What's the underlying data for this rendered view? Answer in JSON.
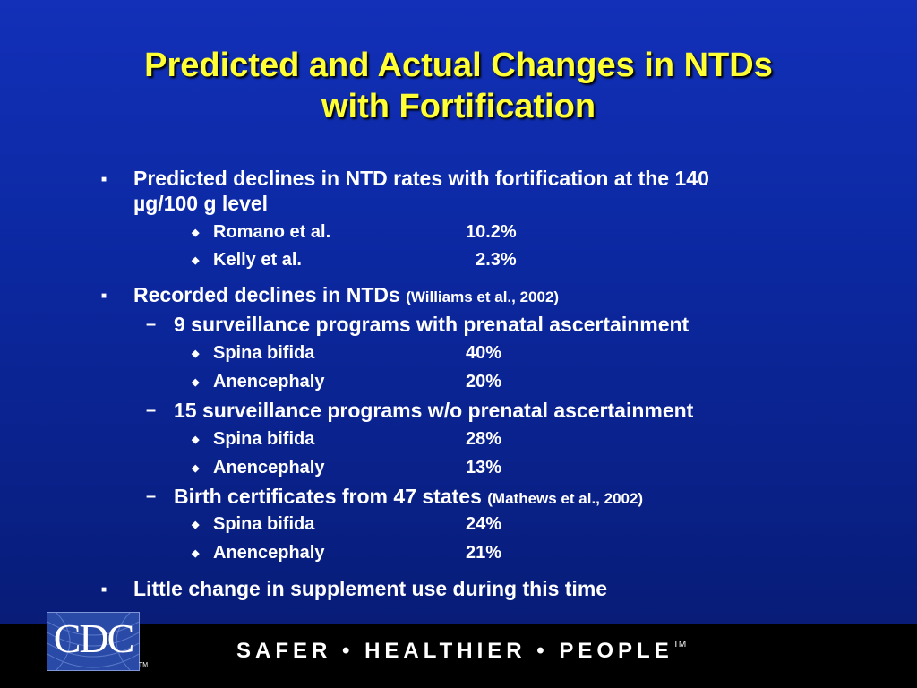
{
  "title": {
    "line1": "Predicted and Actual Changes in NTDs",
    "line2": "with Fortification"
  },
  "predicted": {
    "text_line1": "Predicted declines in NTD rates with fortification at the 140",
    "text_line2": "µg/100 g level",
    "items": [
      {
        "name": "Romano et al.",
        "value": "10.2%"
      },
      {
        "name": "Kelly et al.",
        "value": "2.3%"
      }
    ]
  },
  "recorded": {
    "text": "Recorded declines in NTDs",
    "citation": "(Williams et al., 2002)",
    "groups": [
      {
        "label": "9 surveillance programs with prenatal ascertainment",
        "items": [
          {
            "name": "Spina bifida",
            "value": "40%"
          },
          {
            "name": "Anencephaly",
            "value": "20%"
          }
        ]
      },
      {
        "label": "15 surveillance programs w/o prenatal ascertainment",
        "items": [
          {
            "name": "Spina bifida",
            "value": "28%"
          },
          {
            "name": "Anencephaly",
            "value": "13%"
          }
        ]
      },
      {
        "label": "Birth certificates from 47 states",
        "citation": "(Mathews et al., 2002)",
        "items": [
          {
            "name": "Spina bifida",
            "value": "24%"
          },
          {
            "name": "Anencephaly",
            "value": "21%"
          }
        ]
      }
    ]
  },
  "supplement": {
    "text": "Little change in supplement use during this time"
  },
  "footer": {
    "logo_text": "CDC",
    "logo_tm": "TM",
    "tagline": "SAFER • HEALTHIER • PEOPLE",
    "tagline_tm": "TM"
  },
  "colors": {
    "background_top": "#1230b8",
    "background_bottom": "#071a70",
    "title": "#ffff33",
    "body_text": "#ffffff",
    "footer_bar": "#000000"
  },
  "icons": {
    "level1_bullet": "square-bullet-icon",
    "level2_bullet": "dash-bullet-icon",
    "level3_bullet": "diamond-bullet-icon"
  }
}
